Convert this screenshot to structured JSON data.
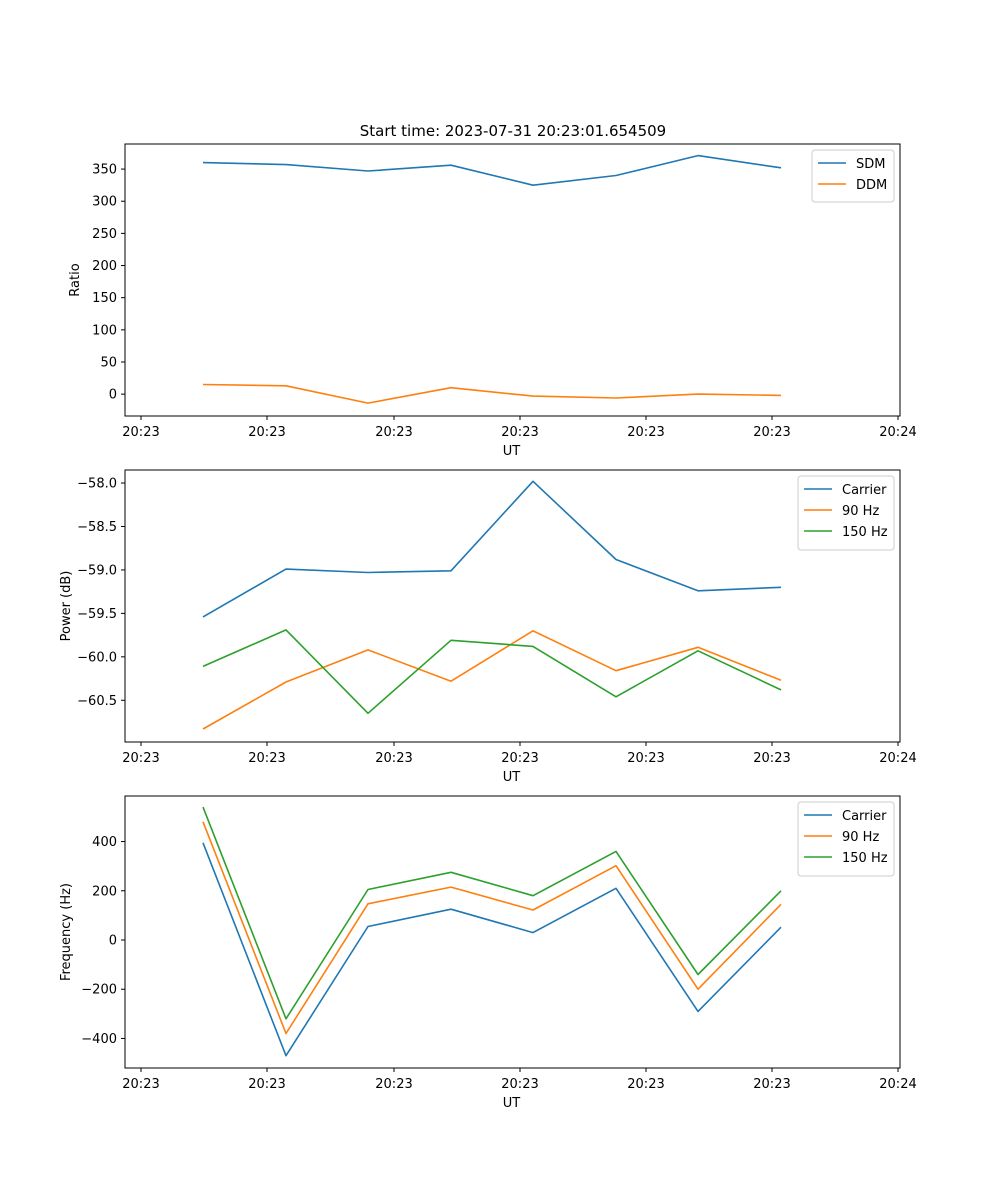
{
  "figure_title": "Start time: 2023-07-31 20:23:01.654509",
  "chart_data": [
    {
      "type": "line",
      "title": "Start time: 2023-07-31 20:23:01.654509",
      "xlabel": "UT",
      "ylabel": "Ratio",
      "x_tick_labels": [
        "20:23",
        "20:23",
        "20:23",
        "20:23",
        "20:23",
        "20:23",
        "20:23",
        "20:24"
      ],
      "y_ticks": [
        0,
        50,
        100,
        150,
        200,
        250,
        300,
        350
      ],
      "y_tick_labels": [
        "0",
        "50",
        "100",
        "150",
        "200",
        "250",
        "300",
        "350"
      ],
      "ylim": [
        -34,
        389
      ],
      "legend_position": "top-right",
      "series": [
        {
          "name": "SDM",
          "color": "#1f77b4",
          "values": [
            360,
            357,
            347,
            356,
            325,
            340,
            371,
            352
          ]
        },
        {
          "name": "DDM",
          "color": "#ff7f0e",
          "values": [
            15,
            13,
            -14,
            10,
            -3,
            -6,
            0,
            -2
          ]
        }
      ]
    },
    {
      "type": "line",
      "title": "",
      "xlabel": "UT",
      "ylabel": "Power (dB)",
      "x_tick_labels": [
        "20:23",
        "20:23",
        "20:23",
        "20:23",
        "20:23",
        "20:23",
        "20:23",
        "20:24"
      ],
      "y_ticks": [
        -58.0,
        -58.5,
        -59.0,
        -59.5,
        -60.0,
        -60.5
      ],
      "y_tick_labels": [
        "−58.0",
        "−58.5",
        "−59.0",
        "−59.5",
        "−60.0",
        "−60.5"
      ],
      "ylim": [
        -60.98,
        -57.85
      ],
      "legend_position": "top-right",
      "series": [
        {
          "name": "Carrier",
          "color": "#1f77b4",
          "values": [
            -59.54,
            -58.99,
            -59.03,
            -59.01,
            -57.98,
            -58.88,
            -59.24,
            -59.2
          ]
        },
        {
          "name": "90 Hz",
          "color": "#ff7f0e",
          "values": [
            -60.83,
            -60.29,
            -59.92,
            -60.28,
            -59.7,
            -60.16,
            -59.89,
            -60.27
          ]
        },
        {
          "name": "150 Hz",
          "color": "#2ca02c",
          "values": [
            -60.11,
            -59.69,
            -60.65,
            -59.81,
            -59.88,
            -60.46,
            -59.93,
            -60.38
          ]
        }
      ]
    },
    {
      "type": "line",
      "title": "",
      "xlabel": "UT",
      "ylabel": "Frequency (Hz)",
      "x_tick_labels": [
        "20:23",
        "20:23",
        "20:23",
        "20:23",
        "20:23",
        "20:23",
        "20:23",
        "20:24"
      ],
      "y_ticks": [
        400,
        200,
        0,
        -200,
        -400
      ],
      "y_tick_labels": [
        "400",
        "200",
        "0",
        "−200",
        "−400"
      ],
      "ylim": [
        -520,
        585
      ],
      "legend_position": "top-right",
      "series": [
        {
          "name": "Carrier",
          "color": "#1f77b4",
          "values": [
            395,
            -470,
            55,
            125,
            30,
            210,
            -290,
            52
          ]
        },
        {
          "name": "90 Hz",
          "color": "#ff7f0e",
          "values": [
            480,
            -380,
            147,
            215,
            122,
            302,
            -200,
            145
          ]
        },
        {
          "name": "150 Hz",
          "color": "#2ca02c",
          "values": [
            540,
            -320,
            205,
            275,
            180,
            360,
            -140,
            200
          ]
        }
      ]
    }
  ]
}
